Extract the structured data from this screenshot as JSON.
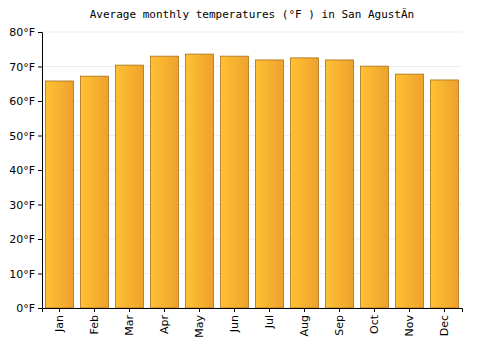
{
  "chart_data": {
    "type": "bar",
    "title": "Average monthly temperatures (°F ) in San AgustÃ­n",
    "categories": [
      "Jan",
      "Feb",
      "Mar",
      "Apr",
      "May",
      "Jun",
      "Jul",
      "Aug",
      "Sep",
      "Oct",
      "Nov",
      "Dec"
    ],
    "values": [
      65.8,
      67.2,
      70.4,
      73.0,
      73.6,
      73.0,
      71.9,
      72.5,
      71.9,
      70.1,
      67.8,
      66.1
    ],
    "color": "#fbaa2e",
    "ylim": [
      0,
      80
    ],
    "yticks": [
      {
        "value": 0,
        "label": "0°F"
      },
      {
        "value": 10,
        "label": "10°F"
      },
      {
        "value": 20,
        "label": "20°F"
      },
      {
        "value": 30,
        "label": "30°F"
      },
      {
        "value": 40,
        "label": "40°F"
      },
      {
        "value": 50,
        "label": "50°F"
      },
      {
        "value": 60,
        "label": "60°F"
      },
      {
        "value": 70,
        "label": "70°F"
      },
      {
        "value": 80,
        "label": "80°F"
      }
    ],
    "grid": true
  }
}
